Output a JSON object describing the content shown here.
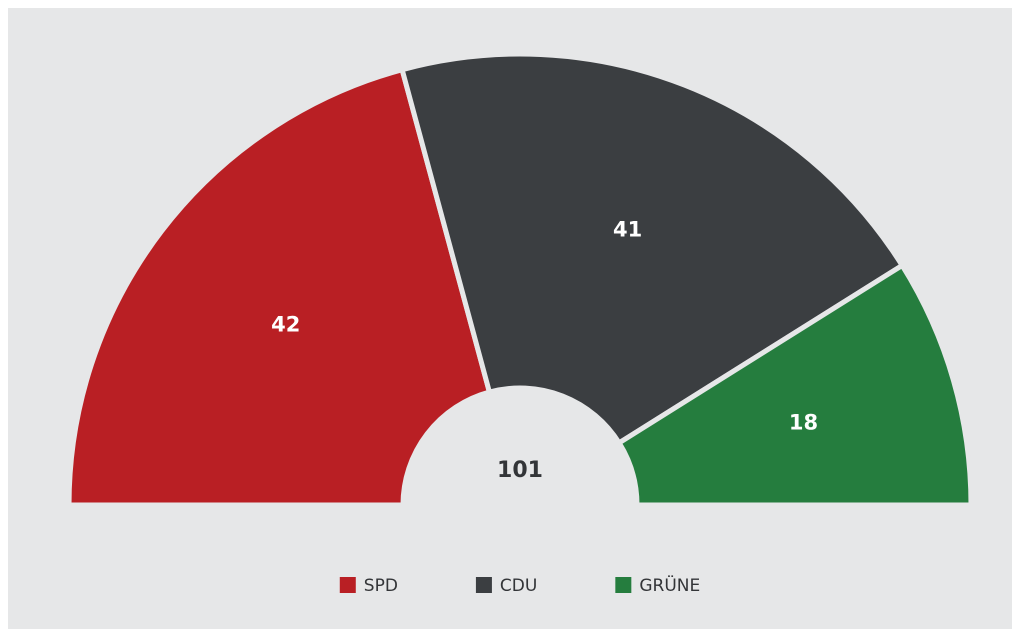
{
  "chart_data": {
    "type": "pie",
    "semicircle": true,
    "categories": [
      "SPD",
      "CDU",
      "GRÜNE"
    ],
    "values": [
      42,
      41,
      18
    ],
    "colors": [
      "#b91f24",
      "#3b3e41",
      "#257d3e"
    ],
    "total": 101,
    "legend": "bottom"
  }
}
